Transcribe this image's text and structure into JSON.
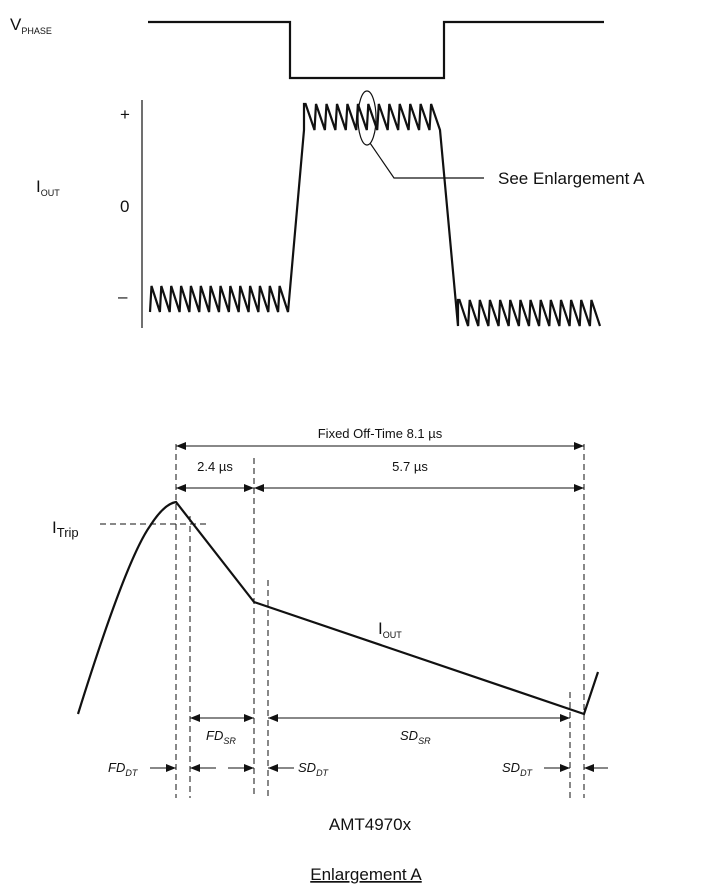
{
  "top_diagram": {
    "vphase_label": "V",
    "vphase_sub": "PHASE",
    "iout_label": "I",
    "iout_sub": "OUT",
    "plus": "+",
    "zero": "0",
    "minus": "–",
    "callout": "See Enlargement A"
  },
  "enlargement": {
    "fixed_off_time": "Fixed Off-Time 8.1 µs",
    "t1": "2.4 µs",
    "t2": "5.7 µs",
    "itrip_label": "I",
    "itrip_sub": "Trip",
    "iout_label": "I",
    "iout_sub": "OUT",
    "fd_sr": "FD",
    "fd_sr_sub": "SR",
    "sd_sr": "SD",
    "sd_sr_sub": "SR",
    "fd_dt": "FD",
    "fd_dt_sub": "DT",
    "sd_dt_1": "SD",
    "sd_dt_1_sub": "DT",
    "sd_dt_2": "SD",
    "sd_dt_2_sub": "DT",
    "part_number": "AMT4970x",
    "caption": "Enlargement A"
  }
}
